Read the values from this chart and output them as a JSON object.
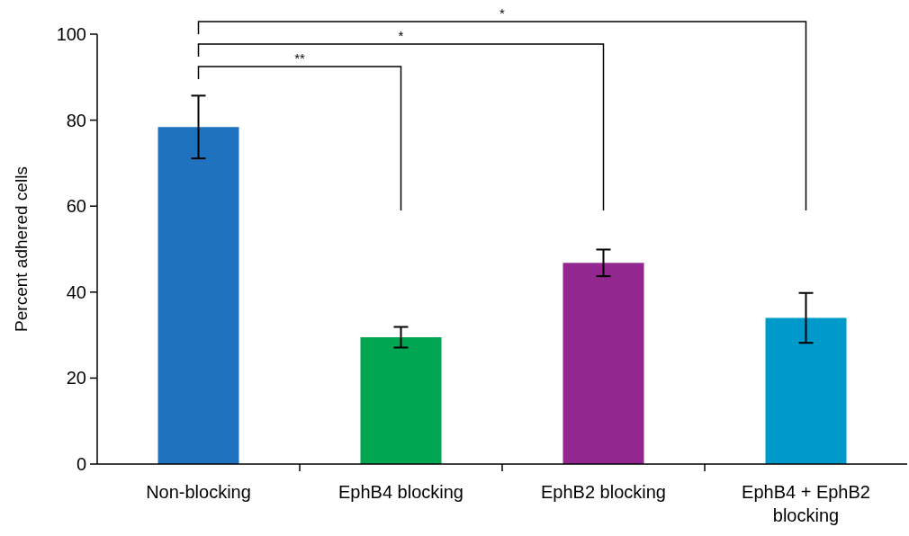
{
  "chart_data": {
    "type": "bar",
    "ylabel": "Percent adhered cells",
    "categories": [
      "Non-blocking",
      "EphB4 blocking",
      "EphB2 blocking",
      "EphB4 + EphB2 blocking"
    ],
    "values": [
      78.4,
      29.5,
      46.8,
      34.0
    ],
    "colors": [
      "#1f73be",
      "#00a651",
      "#92278f",
      "#0099cc"
    ],
    "errors": [
      7.3,
      2.4,
      3.1,
      5.8
    ],
    "ylim": [
      0,
      100
    ],
    "yticks": [
      0,
      20,
      40,
      60,
      80,
      100
    ],
    "annotations": [
      "**",
      "*",
      "*"
    ]
  }
}
